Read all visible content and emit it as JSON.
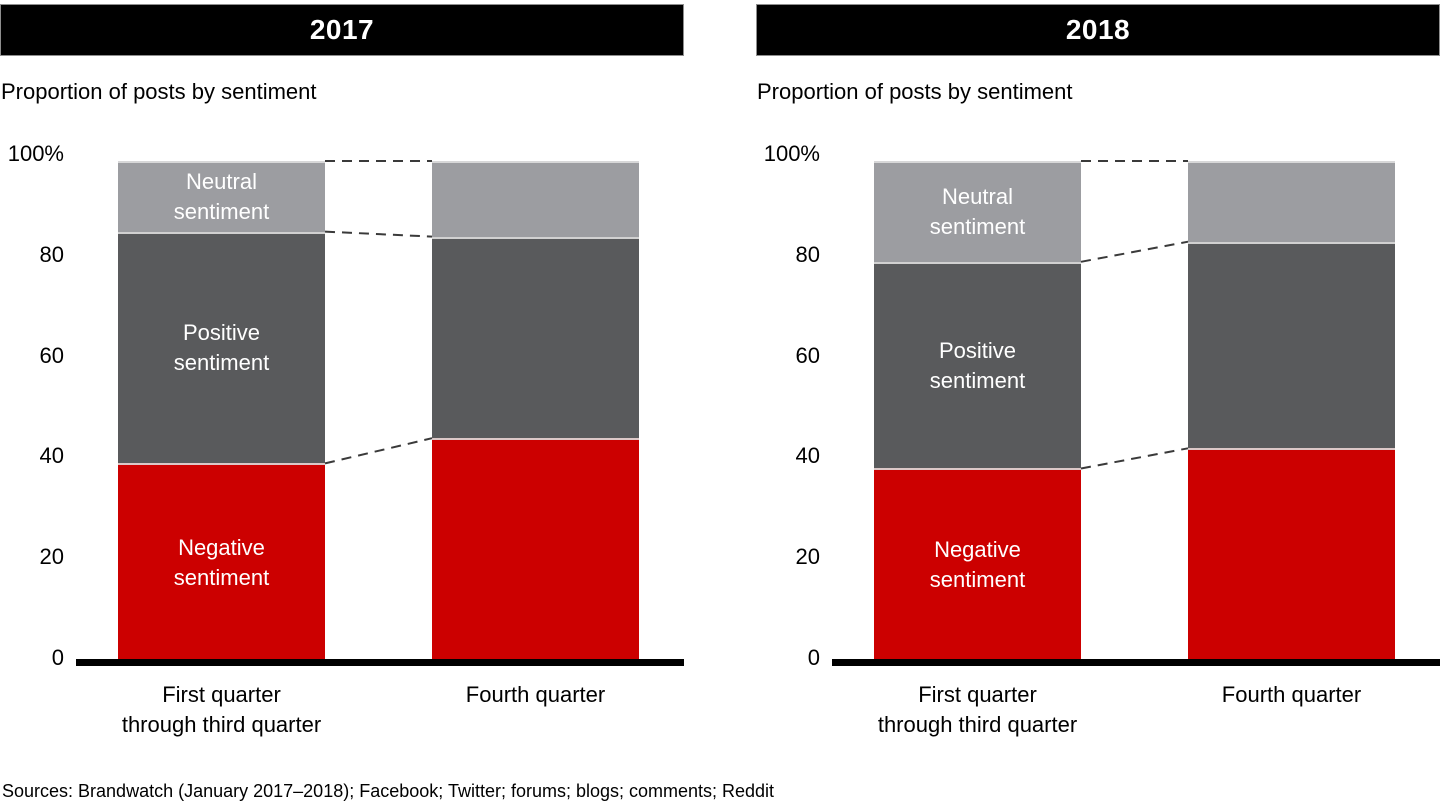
{
  "colors": {
    "negative": "#cc0000",
    "positive": "#595a5c",
    "neutral": "#9c9da1",
    "header_bg": "#000000",
    "header_text": "#ffffff",
    "dashed": "#3a3a3a",
    "axis": "#000000"
  },
  "footer": {
    "sources": "Sources: Brandwatch (January 2017–2018); Facebook; Twitter; forums; blogs; comments; Reddit"
  },
  "chart_data": [
    {
      "type": "bar",
      "stacked": true,
      "title": "2017",
      "subtitle": "Proportion of posts by sentiment",
      "unit": "%",
      "ylim": [
        0,
        100
      ],
      "yticks": [
        0,
        20,
        40,
        60,
        80,
        100
      ],
      "ytick_labels": [
        "0",
        "20",
        "40",
        "60",
        "80",
        "100%"
      ],
      "grid": false,
      "legend_position": "labels-inside-first-bar",
      "series_labels_on_first_bar": true,
      "categories": [
        [
          "First quarter",
          "through third quarter"
        ],
        [
          "Fourth quarter"
        ]
      ],
      "series": [
        {
          "name": "Negative sentiment",
          "color_key": "negative",
          "values": [
            39,
            44
          ]
        },
        {
          "name": "Positive sentiment",
          "color_key": "positive",
          "values": [
            46,
            40
          ]
        },
        {
          "name": "Neutral sentiment",
          "color_key": "neutral",
          "values": [
            14,
            15
          ]
        }
      ]
    },
    {
      "type": "bar",
      "stacked": true,
      "title": "2018",
      "subtitle": "Proportion of posts by sentiment",
      "unit": "%",
      "ylim": [
        0,
        100
      ],
      "yticks": [
        0,
        20,
        40,
        60,
        80,
        100
      ],
      "ytick_labels": [
        "0",
        "20",
        "40",
        "60",
        "80",
        "100%"
      ],
      "grid": false,
      "legend_position": "labels-inside-first-bar",
      "series_labels_on_first_bar": true,
      "categories": [
        [
          "First quarter",
          "through third quarter"
        ],
        [
          "Fourth quarter"
        ]
      ],
      "series": [
        {
          "name": "Negative sentiment",
          "color_key": "negative",
          "values": [
            38,
            42
          ]
        },
        {
          "name": "Positive sentiment",
          "color_key": "positive",
          "values": [
            41,
            41
          ]
        },
        {
          "name": "Neutral sentiment",
          "color_key": "neutral",
          "values": [
            20,
            16
          ]
        }
      ]
    }
  ]
}
